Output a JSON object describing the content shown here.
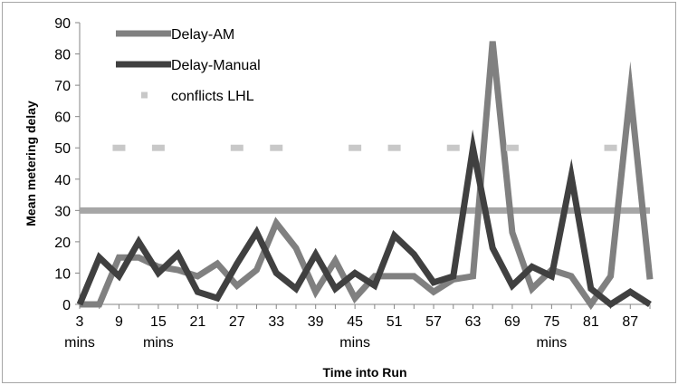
{
  "chart_data": {
    "type": "line",
    "title": "",
    "xlabel": "Time into Run",
    "ylabel": "Mean metering delay",
    "ylim": [
      0,
      90
    ],
    "yticks": [
      0,
      10,
      20,
      30,
      40,
      50,
      60,
      70,
      80,
      90
    ],
    "xlim": [
      3,
      90
    ],
    "xtick_labels": [
      {
        "x": 3,
        "line1": "3",
        "line2": "mins"
      },
      {
        "x": 9,
        "line1": "9",
        "line2": ""
      },
      {
        "x": 15,
        "line1": "15",
        "line2": "mins"
      },
      {
        "x": 21,
        "line1": "21",
        "line2": ""
      },
      {
        "x": 27,
        "line1": "27",
        "line2": ""
      },
      {
        "x": 33,
        "line1": "33",
        "line2": ""
      },
      {
        "x": 39,
        "line1": "39",
        "line2": ""
      },
      {
        "x": 45,
        "line1": "45",
        "line2": "mins"
      },
      {
        "x": 51,
        "line1": "51",
        "line2": ""
      },
      {
        "x": 57,
        "line1": "57",
        "line2": ""
      },
      {
        "x": 63,
        "line1": "63",
        "line2": ""
      },
      {
        "x": 69,
        "line1": "69",
        "line2": ""
      },
      {
        "x": 75,
        "line1": "75",
        "line2": "mins"
      },
      {
        "x": 81,
        "line1": "81",
        "line2": ""
      },
      {
        "x": 87,
        "line1": "87",
        "line2": ""
      }
    ],
    "grid": false,
    "legend_position": "top-left",
    "reference_line": {
      "y": 30,
      "color": "#a6a6a6"
    },
    "series": [
      {
        "name": "Delay-AM",
        "color": "#808080",
        "style": "solid",
        "points": [
          [
            3,
            0
          ],
          [
            6,
            0
          ],
          [
            9,
            15
          ],
          [
            12,
            15
          ],
          [
            15,
            12
          ],
          [
            18,
            11
          ],
          [
            21,
            9
          ],
          [
            24,
            13
          ],
          [
            27,
            6
          ],
          [
            30,
            11
          ],
          [
            33,
            26
          ],
          [
            36,
            18
          ],
          [
            39,
            4
          ],
          [
            42,
            14
          ],
          [
            45,
            2
          ],
          [
            48,
            9
          ],
          [
            51,
            9
          ],
          [
            54,
            9
          ],
          [
            57,
            4
          ],
          [
            60,
            8
          ],
          [
            63,
            9
          ],
          [
            66,
            84
          ],
          [
            69,
            23
          ],
          [
            72,
            5
          ],
          [
            75,
            11
          ],
          [
            78,
            9
          ],
          [
            81,
            0
          ],
          [
            84,
            9
          ],
          [
            87,
            68
          ],
          [
            90,
            8
          ]
        ]
      },
      {
        "name": "Delay-Manual",
        "color": "#404040",
        "style": "solid",
        "points": [
          [
            3,
            0
          ],
          [
            6,
            15
          ],
          [
            9,
            9
          ],
          [
            12,
            20
          ],
          [
            15,
            10
          ],
          [
            18,
            16
          ],
          [
            21,
            4
          ],
          [
            24,
            2
          ],
          [
            27,
            13
          ],
          [
            30,
            23
          ],
          [
            33,
            10
          ],
          [
            36,
            5
          ],
          [
            39,
            16
          ],
          [
            42,
            5
          ],
          [
            45,
            10
          ],
          [
            48,
            6
          ],
          [
            51,
            22
          ],
          [
            54,
            16
          ],
          [
            57,
            7
          ],
          [
            60,
            9
          ],
          [
            63,
            50
          ],
          [
            66,
            18
          ],
          [
            69,
            6
          ],
          [
            72,
            12
          ],
          [
            75,
            9
          ],
          [
            78,
            41
          ],
          [
            81,
            5
          ],
          [
            84,
            0
          ],
          [
            87,
            4
          ],
          [
            90,
            0
          ]
        ]
      },
      {
        "name": "conflicts LHL",
        "color": "#c8c8c8",
        "style": "dashes",
        "points": [
          [
            9,
            50
          ],
          [
            15,
            50
          ],
          [
            27,
            50
          ],
          [
            33,
            50
          ],
          [
            45,
            50
          ],
          [
            51,
            50
          ],
          [
            60,
            50
          ],
          [
            69,
            50
          ],
          [
            84,
            50
          ]
        ]
      }
    ]
  }
}
